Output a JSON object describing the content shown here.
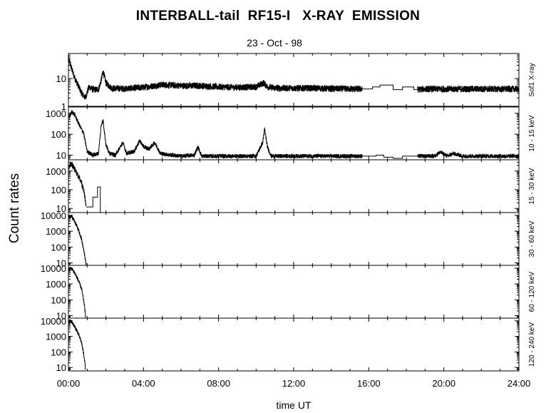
{
  "title": "INTERBALL-tail  RF15-I   X-RAY  EMISSION",
  "subtitle": "23 - Oct - 98",
  "ylabel": "Count  rates",
  "xlabel": "time UT",
  "chart_data": {
    "type": "line",
    "x_ticks": [
      "00:00",
      "04:00",
      "08:00",
      "12:00",
      "16:00",
      "20:00",
      "24:00"
    ],
    "x_range_hours": [
      0,
      24
    ],
    "y_scale": "log",
    "panels": [
      {
        "channel": "Sof1  X-ray",
        "ylim": [
          1,
          80
        ],
        "y_ticks": [
          {
            "v": 1,
            "label": "1"
          },
          {
            "v": 10,
            "label": "10"
          }
        ],
        "noise": 0.12,
        "series": [
          [
            0,
            55
          ],
          [
            0.15,
            25
          ],
          [
            0.3,
            12
          ],
          [
            0.5,
            6
          ],
          [
            0.7,
            3
          ],
          [
            0.9,
            2
          ],
          [
            1.1,
            5
          ],
          [
            1.3,
            4
          ],
          [
            1.6,
            4
          ],
          [
            1.75,
            9
          ],
          [
            1.85,
            18
          ],
          [
            2.0,
            7
          ],
          [
            2.3,
            4.5
          ],
          [
            3,
            4.3
          ],
          [
            4,
            4.8
          ],
          [
            5,
            6
          ],
          [
            6,
            5.5
          ],
          [
            7,
            5.5
          ],
          [
            8,
            5
          ],
          [
            9,
            4.8
          ],
          [
            10,
            5
          ],
          [
            10.4,
            7
          ],
          [
            10.6,
            5
          ],
          [
            11,
            4.5
          ],
          [
            12,
            4.5
          ],
          [
            13,
            4.5
          ],
          [
            14,
            4.3
          ],
          [
            15.2,
            4.2
          ],
          [
            15.65,
            4.2
          ]
        ],
        "segments": [
          [
            [
              15.65,
              4.2
            ],
            [
              16.2,
              4.2
            ],
            [
              16.2,
              5
            ],
            [
              16.6,
              5
            ],
            [
              16.6,
              5.8
            ],
            [
              17.3,
              5.8
            ],
            [
              17.3,
              4
            ],
            [
              17.8,
              4
            ],
            [
              17.8,
              5
            ],
            [
              18.4,
              5
            ],
            [
              18.4,
              4
            ],
            [
              18.6,
              4
            ]
          ],
          [
            [
              18.6,
              4
            ],
            [
              19,
              4.2
            ],
            [
              20,
              4.2
            ],
            [
              21,
              4.2
            ],
            [
              22,
              4.2
            ],
            [
              23,
              4.2
            ],
            [
              24,
              4.2
            ]
          ]
        ]
      },
      {
        "channel": "10 - 15 keV",
        "ylim": [
          6,
          2000
        ],
        "y_ticks": [
          {
            "v": 10,
            "label": "10"
          },
          {
            "v": 100,
            "label": "100"
          },
          {
            "v": 1000,
            "label": "1000"
          }
        ],
        "noise": 0.1,
        "series": [
          [
            0,
            600
          ],
          [
            0.2,
            1200
          ],
          [
            0.35,
            800
          ],
          [
            0.6,
            250
          ],
          [
            0.8,
            120
          ],
          [
            1.0,
            15
          ],
          [
            1.3,
            10
          ],
          [
            1.6,
            12
          ],
          [
            1.75,
            300
          ],
          [
            1.85,
            450
          ],
          [
            2.0,
            30
          ],
          [
            2.2,
            12
          ],
          [
            2.5,
            10
          ],
          [
            2.9,
            40
          ],
          [
            3.1,
            12
          ],
          [
            3.5,
            15
          ],
          [
            3.8,
            50
          ],
          [
            4.0,
            25
          ],
          [
            4.3,
            20
          ],
          [
            4.6,
            40
          ],
          [
            4.9,
            12
          ],
          [
            5.5,
            10
          ],
          [
            6,
            9
          ],
          [
            6.7,
            10
          ],
          [
            6.9,
            25
          ],
          [
            7.1,
            9
          ],
          [
            8,
            9
          ],
          [
            9,
            9
          ],
          [
            10,
            9
          ],
          [
            10.35,
            40
          ],
          [
            10.45,
            180
          ],
          [
            10.6,
            25
          ],
          [
            10.8,
            9
          ],
          [
            12,
            9
          ],
          [
            13,
            9
          ],
          [
            14,
            9
          ],
          [
            15,
            9
          ],
          [
            15.65,
            9
          ]
        ],
        "segments": [
          [
            [
              15.65,
              9
            ],
            [
              16.4,
              9
            ],
            [
              16.4,
              10
            ],
            [
              16.8,
              10
            ],
            [
              16.8,
              8
            ],
            [
              17.3,
              8
            ],
            [
              17.3,
              7
            ],
            [
              17.8,
              7
            ],
            [
              17.8,
              9
            ],
            [
              18.6,
              9
            ]
          ],
          [
            [
              18.6,
              9
            ],
            [
              19.5,
              9
            ],
            [
              19.8,
              14
            ],
            [
              20.2,
              9
            ],
            [
              20.5,
              12
            ],
            [
              21,
              9
            ],
            [
              22,
              9
            ],
            [
              23,
              9
            ],
            [
              24,
              9
            ]
          ]
        ]
      },
      {
        "channel": "15 - 30 keV",
        "ylim": [
          6,
          4000
        ],
        "y_ticks": [
          {
            "v": 10,
            "label": "10"
          },
          {
            "v": 100,
            "label": "100"
          },
          {
            "v": 1000,
            "label": "1000"
          }
        ],
        "noise": 0.15,
        "series": [
          [
            0,
            1500
          ],
          [
            0.15,
            2500
          ],
          [
            0.3,
            1400
          ],
          [
            0.5,
            600
          ],
          [
            0.7,
            250
          ],
          [
            0.85,
            60
          ],
          [
            0.95,
            12
          ]
        ],
        "segments": [
          [
            [
              0.95,
              12
            ],
            [
              1.3,
              12
            ],
            [
              1.3,
              40
            ],
            [
              1.55,
              40
            ],
            [
              1.55,
              140
            ],
            [
              1.7,
              140
            ],
            [
              1.7,
              6
            ]
          ]
        ]
      },
      {
        "channel": "30 - 60 keV",
        "ylim": [
          7,
          15000
        ],
        "y_ticks": [
          {
            "v": 10,
            "label": "10"
          },
          {
            "v": 100,
            "label": "100"
          },
          {
            "v": 1000,
            "label": "1000"
          },
          {
            "v": 10000,
            "label": "10000"
          }
        ],
        "noise": 0.12,
        "series": [
          [
            0,
            8000
          ],
          [
            0.15,
            9000
          ],
          [
            0.3,
            5000
          ],
          [
            0.5,
            1500
          ],
          [
            0.7,
            300
          ],
          [
            0.85,
            40
          ],
          [
            0.95,
            7
          ]
        ],
        "segments": []
      },
      {
        "channel": "60 - 120 keV",
        "ylim": [
          7,
          15000
        ],
        "y_ticks": [
          {
            "v": 10,
            "label": "10"
          },
          {
            "v": 100,
            "label": "100"
          },
          {
            "v": 1000,
            "label": "1000"
          },
          {
            "v": 10000,
            "label": "10000"
          }
        ],
        "noise": 0.12,
        "series": [
          [
            0,
            9000
          ],
          [
            0.15,
            9500
          ],
          [
            0.3,
            6000
          ],
          [
            0.5,
            2000
          ],
          [
            0.7,
            500
          ],
          [
            0.85,
            50
          ],
          [
            0.92,
            7
          ]
        ],
        "segments": []
      },
      {
        "channel": "120 - 240 keV",
        "ylim": [
          6,
          15000
        ],
        "y_ticks": [
          {
            "v": 10,
            "label": "10"
          },
          {
            "v": 100,
            "label": "100"
          },
          {
            "v": 1000,
            "label": "1000"
          },
          {
            "v": 10000,
            "label": "10000"
          }
        ],
        "noise": 0.12,
        "series": [
          [
            0,
            9000
          ],
          [
            0.15,
            9500
          ],
          [
            0.3,
            5000
          ],
          [
            0.5,
            1800
          ],
          [
            0.7,
            400
          ],
          [
            0.85,
            40
          ],
          [
            0.92,
            6
          ]
        ],
        "segments": []
      }
    ]
  }
}
